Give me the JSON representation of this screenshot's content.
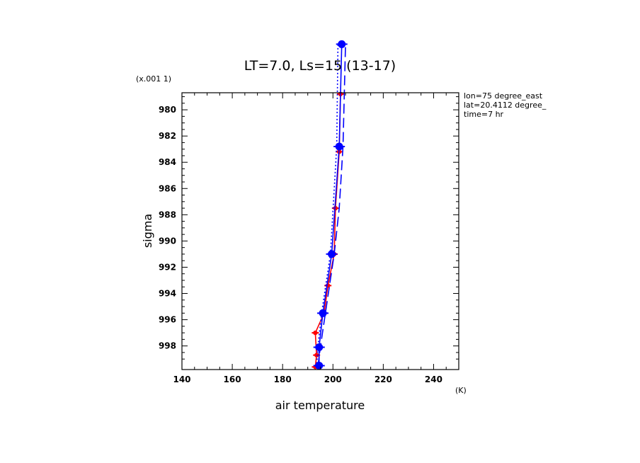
{
  "chart_data": {
    "type": "line",
    "title": "LT=7.0, Ls=15 (13-17)",
    "xlabel": "air temperature",
    "xunit": "(K)",
    "ylabel": "sigma",
    "yscale_note": "(x.001 1)",
    "xlim": [
      140,
      250
    ],
    "ylim": [
      999.8,
      978.7
    ],
    "x_ticks": [
      "140",
      "160",
      "180",
      "200",
      "220",
      "240"
    ],
    "y_ticks": [
      "980",
      "982",
      "984",
      "986",
      "988",
      "990",
      "992",
      "994",
      "996",
      "998"
    ],
    "info": [
      "lon=75 degree_east",
      "lat=20.4112 degree_",
      "time=7 hr"
    ],
    "series": [
      {
        "color": "#ff0000",
        "style": "solid-markers",
        "points": [
          [
            193,
            999.6
          ],
          [
            193.5,
            998.7
          ],
          [
            193,
            997.0
          ],
          [
            196.5,
            995.5
          ],
          [
            198,
            993.4
          ],
          [
            200.5,
            991.0
          ],
          [
            201,
            987.5
          ],
          [
            202.5,
            983.2
          ],
          [
            203,
            978.8
          ]
        ]
      },
      {
        "color": "#0000ff",
        "style": "solid-markers",
        "points": [
          [
            194.5,
            999.5
          ],
          [
            194.5,
            998.1
          ],
          [
            196,
            995.5
          ],
          [
            199.5,
            991.0
          ],
          [
            202.5,
            982.8
          ],
          [
            203.5,
            975
          ]
        ]
      },
      {
        "color": "#0000ff",
        "style": "dashed",
        "points": [
          [
            194,
            999.6
          ],
          [
            195,
            998.1
          ],
          [
            197,
            995.5
          ],
          [
            200.5,
            991.0
          ],
          [
            202.5,
            987.5
          ],
          [
            204,
            982.8
          ],
          [
            205,
            975
          ]
        ]
      },
      {
        "color": "#0000ff",
        "style": "dotted",
        "points": [
          [
            193.5,
            999.6
          ],
          [
            194,
            998.1
          ],
          [
            195.5,
            995.5
          ],
          [
            199,
            991.0
          ],
          [
            201.5,
            982.8
          ],
          [
            202,
            975
          ]
        ]
      }
    ]
  }
}
